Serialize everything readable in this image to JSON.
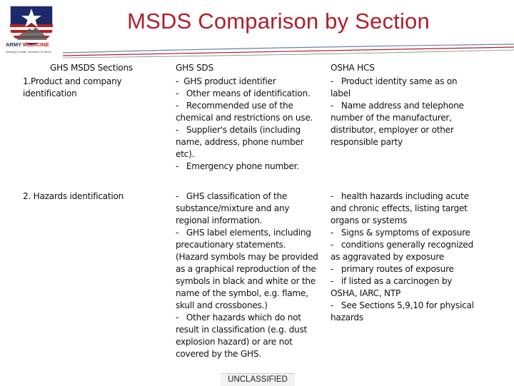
{
  "logo": {
    "name_part1": "ARMY ",
    "name_part2": "MEDICINE",
    "tagline": "Serving To Heal...Honored To Serve"
  },
  "title": "MSDS Comparison by Section",
  "headers": [
    "GHS MSDS Sections",
    "GHS SDS",
    "OSHA HCS"
  ],
  "rows": [
    {
      "section": [
        "1.Product and company",
        "identification"
      ],
      "ghs_sds": [
        "-  GHS product identifier",
        "-   Other means of identification.",
        "-   Recommended use of the",
        "chemical and restrictions on use.",
        "-   Supplier's details (including",
        "name, address, phone number",
        "etc).",
        "-   Emergency phone number."
      ],
      "osha_hcs": [
        "-   Product identity same as on",
        "label",
        "-   Name address and telephone",
        "number of the manufacturer,",
        "distributor, employer or other",
        "responsible party"
      ]
    },
    {
      "section": [
        "2. Hazards identification"
      ],
      "ghs_sds": [
        "-   GHS classification of the",
        "substance/mixture and any",
        "regional information.",
        "-   GHS label elements, including",
        "precautionary statements.",
        "(Hazard symbols may be provided",
        "as a graphical reproduction of the",
        "symbols in black and white or the",
        "name of the symbol, e.g. flame,",
        "skull and crossbones.)",
        "-   Other hazards which do not",
        "result in classification (e.g. dust",
        "explosion hazard) or are not",
        "covered by the GHS."
      ],
      "osha_hcs": [
        "-   health hazards including acute",
        "and chronic effects, listing target",
        "organs or systems",
        "-   Signs & symptoms of exposure",
        "-   conditions generally recognized",
        "as aggravated by exposure",
        "-   primary routes of exposure",
        "-   if listed as a carcinogen by",
        "OSHA, IARC, NTP",
        "-   See Sections 5,9,10 for physical",
        "hazards"
      ]
    }
  ],
  "footer": "UNCLASSIFIED",
  "colors": {
    "title": "#b01e2a",
    "logo_blue": "#1b2a6b",
    "logo_red": "#b8201f"
  }
}
